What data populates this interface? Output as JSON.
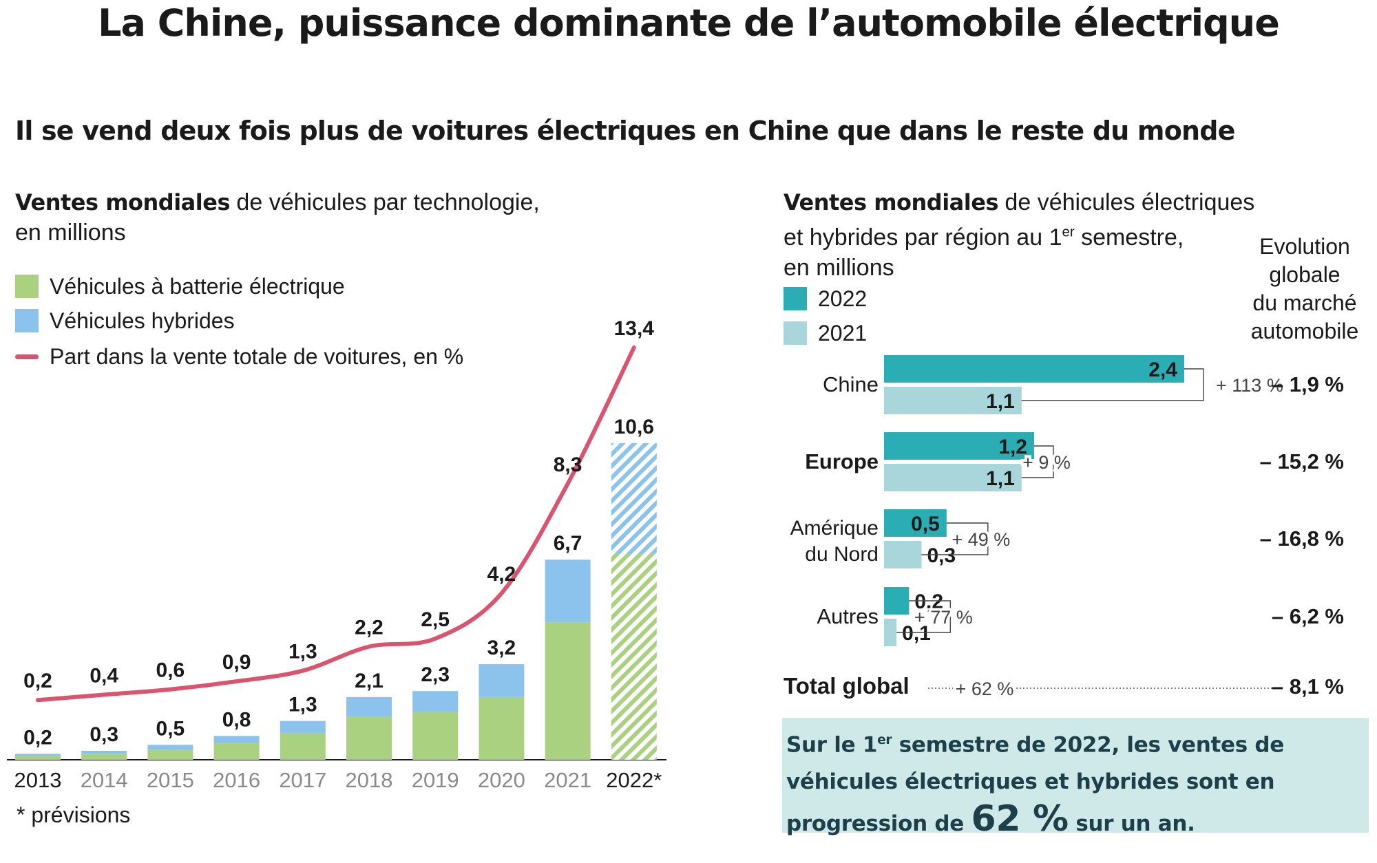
{
  "title": "La Chine, puissance dominante de l’automobile électrique",
  "subtitle": "Il se vend deux fois plus de voitures électriques en Chine que dans le reste du monde",
  "left_chart": {
    "heading_bold": "Ventes mondiales",
    "heading_rest": " de véhicules par technologie,",
    "heading_line2": "en millions",
    "legend": {
      "bev": "Véhicules à batterie électrique",
      "hybrid": "Véhicules hybrides",
      "share": "Part dans la vente totale de voitures, en %"
    },
    "footnote": "* prévisions"
  },
  "right_chart": {
    "heading_bold": "Ventes mondiales",
    "heading_rest": " de véhicules électriques",
    "heading_line2_pre": "et hybrides par région au 1",
    "heading_line2_sup": "er",
    "heading_line2_post": " semestre,",
    "heading_line3": "en millions",
    "legend_2022": "2022",
    "legend_2021": "2021",
    "evolution_heading": "Evolution\nglobale\ndu marché\nautomobile",
    "total_label": "Total global",
    "total_growth": "+ 62 %",
    "total_evolution": "– 8,1 %"
  },
  "callout": {
    "part1": "Sur le 1",
    "sup": "er",
    "part2": " semestre de 2022, les ventes de véhicules électriques et hybrides sont en progression de ",
    "big": "62 %",
    "part3": " sur un an."
  },
  "colors": {
    "bev": "#a9d17f",
    "hybrid": "#8cc3ec",
    "share_line": "#d9546e",
    "bar_2022": "#2aaeb3",
    "bar_2021": "#a8d6da",
    "callout_bg": "#cfe9e8"
  },
  "chart_data": [
    {
      "type": "bar",
      "stacked": true,
      "categories": [
        "2013",
        "2014",
        "2015",
        "2016",
        "2017",
        "2018",
        "2019",
        "2020",
        "2021",
        "2022*"
      ],
      "series": [
        {
          "name": "Véhicules à batterie électrique",
          "values": [
            0.13,
            0.2,
            0.33,
            0.56,
            0.9,
            1.45,
            1.6,
            2.1,
            4.6,
            6.9
          ]
        },
        {
          "name": "Véhicules hybrides",
          "values": [
            0.07,
            0.1,
            0.17,
            0.24,
            0.4,
            0.65,
            0.7,
            1.1,
            2.1,
            3.7
          ]
        }
      ],
      "totals": [
        0.2,
        0.3,
        0.5,
        0.8,
        1.3,
        2.1,
        2.3,
        3.2,
        6.7,
        10.6
      ],
      "total_labels": [
        "0,2",
        "0,3",
        "0,5",
        "0,8",
        "1,3",
        "2,1",
        "2,3",
        "3,2",
        "6,7",
        "10,6"
      ],
      "forecast_index": 9,
      "line": {
        "name": "Part dans la vente totale de voitures, en %",
        "values": [
          0.2,
          0.4,
          0.6,
          0.9,
          1.3,
          2.2,
          2.5,
          4.2,
          8.3,
          13.4
        ],
        "labels": [
          "0,2",
          "0,4",
          "0,6",
          "0,9",
          "1,3",
          "2,2",
          "2,5",
          "4,2",
          "8,3",
          "13,4"
        ]
      },
      "ylim": [
        0,
        13.4
      ],
      "grid": false
    },
    {
      "type": "bar",
      "orientation": "horizontal",
      "categories": [
        "Chine",
        "Europe",
        "Amérique du Nord",
        "Autres"
      ],
      "category_bold": [
        false,
        true,
        false,
        false
      ],
      "series": [
        {
          "name": "2022",
          "values": [
            2.4,
            1.2,
            0.5,
            0.2
          ],
          "labels": [
            "2,4",
            "1,2",
            "0,5",
            "0,2"
          ]
        },
        {
          "name": "2021",
          "values": [
            1.1,
            1.1,
            0.3,
            0.1
          ],
          "labels": [
            "1,1",
            "1,1",
            "0,3",
            "0,1"
          ]
        }
      ],
      "growth": [
        "+ 113 %",
        "+ 9 %",
        "+ 49 %",
        "+ 77 %"
      ],
      "market_evolution": [
        "– 1,9 %",
        "– 15,2 %",
        "– 16,8 %",
        "– 6,2 %"
      ]
    }
  ]
}
